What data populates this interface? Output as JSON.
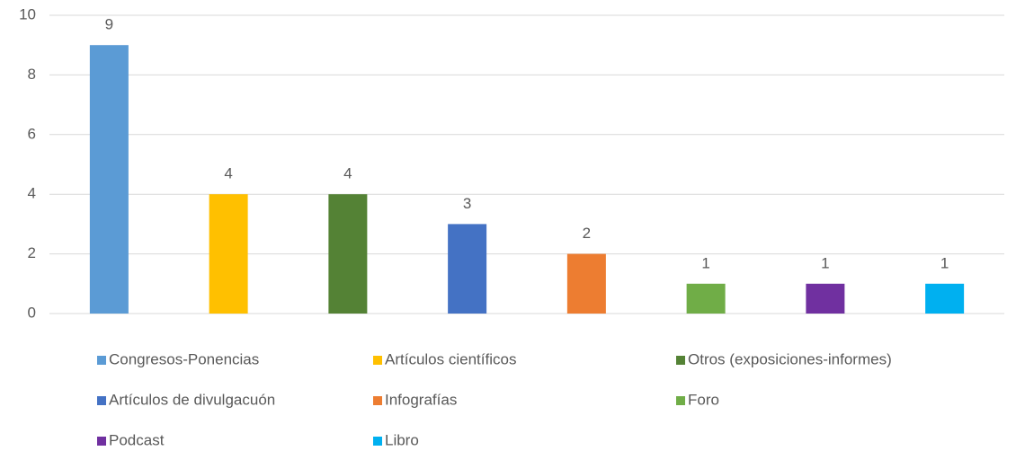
{
  "chart_data": {
    "type": "bar",
    "series": [
      {
        "name": "Congresos-Ponencias",
        "color": "#5b9bd5",
        "values": [
          9
        ]
      },
      {
        "name": "Artículos científicos",
        "color": "#ffc000",
        "values": [
          4
        ]
      },
      {
        "name": "Otros (exposiciones-informes)",
        "color": "#548235",
        "values": [
          4
        ]
      },
      {
        "name": "Artículos de divulgacuón",
        "color": "#4472c4",
        "values": [
          3
        ]
      },
      {
        "name": "Infografías",
        "color": "#ed7d31",
        "values": [
          2
        ]
      },
      {
        "name": "Foro",
        "color": "#70ad47",
        "values": [
          1
        ]
      },
      {
        "name": "Podcast",
        "color": "#7030a0",
        "values": [
          1
        ]
      },
      {
        "name": "Libro",
        "color": "#00b0f0",
        "values": [
          1
        ]
      }
    ],
    "ylim": [
      0,
      10
    ],
    "yticks": [
      0,
      2,
      4,
      6,
      8,
      10
    ],
    "grid": true,
    "legend": "bottom"
  }
}
